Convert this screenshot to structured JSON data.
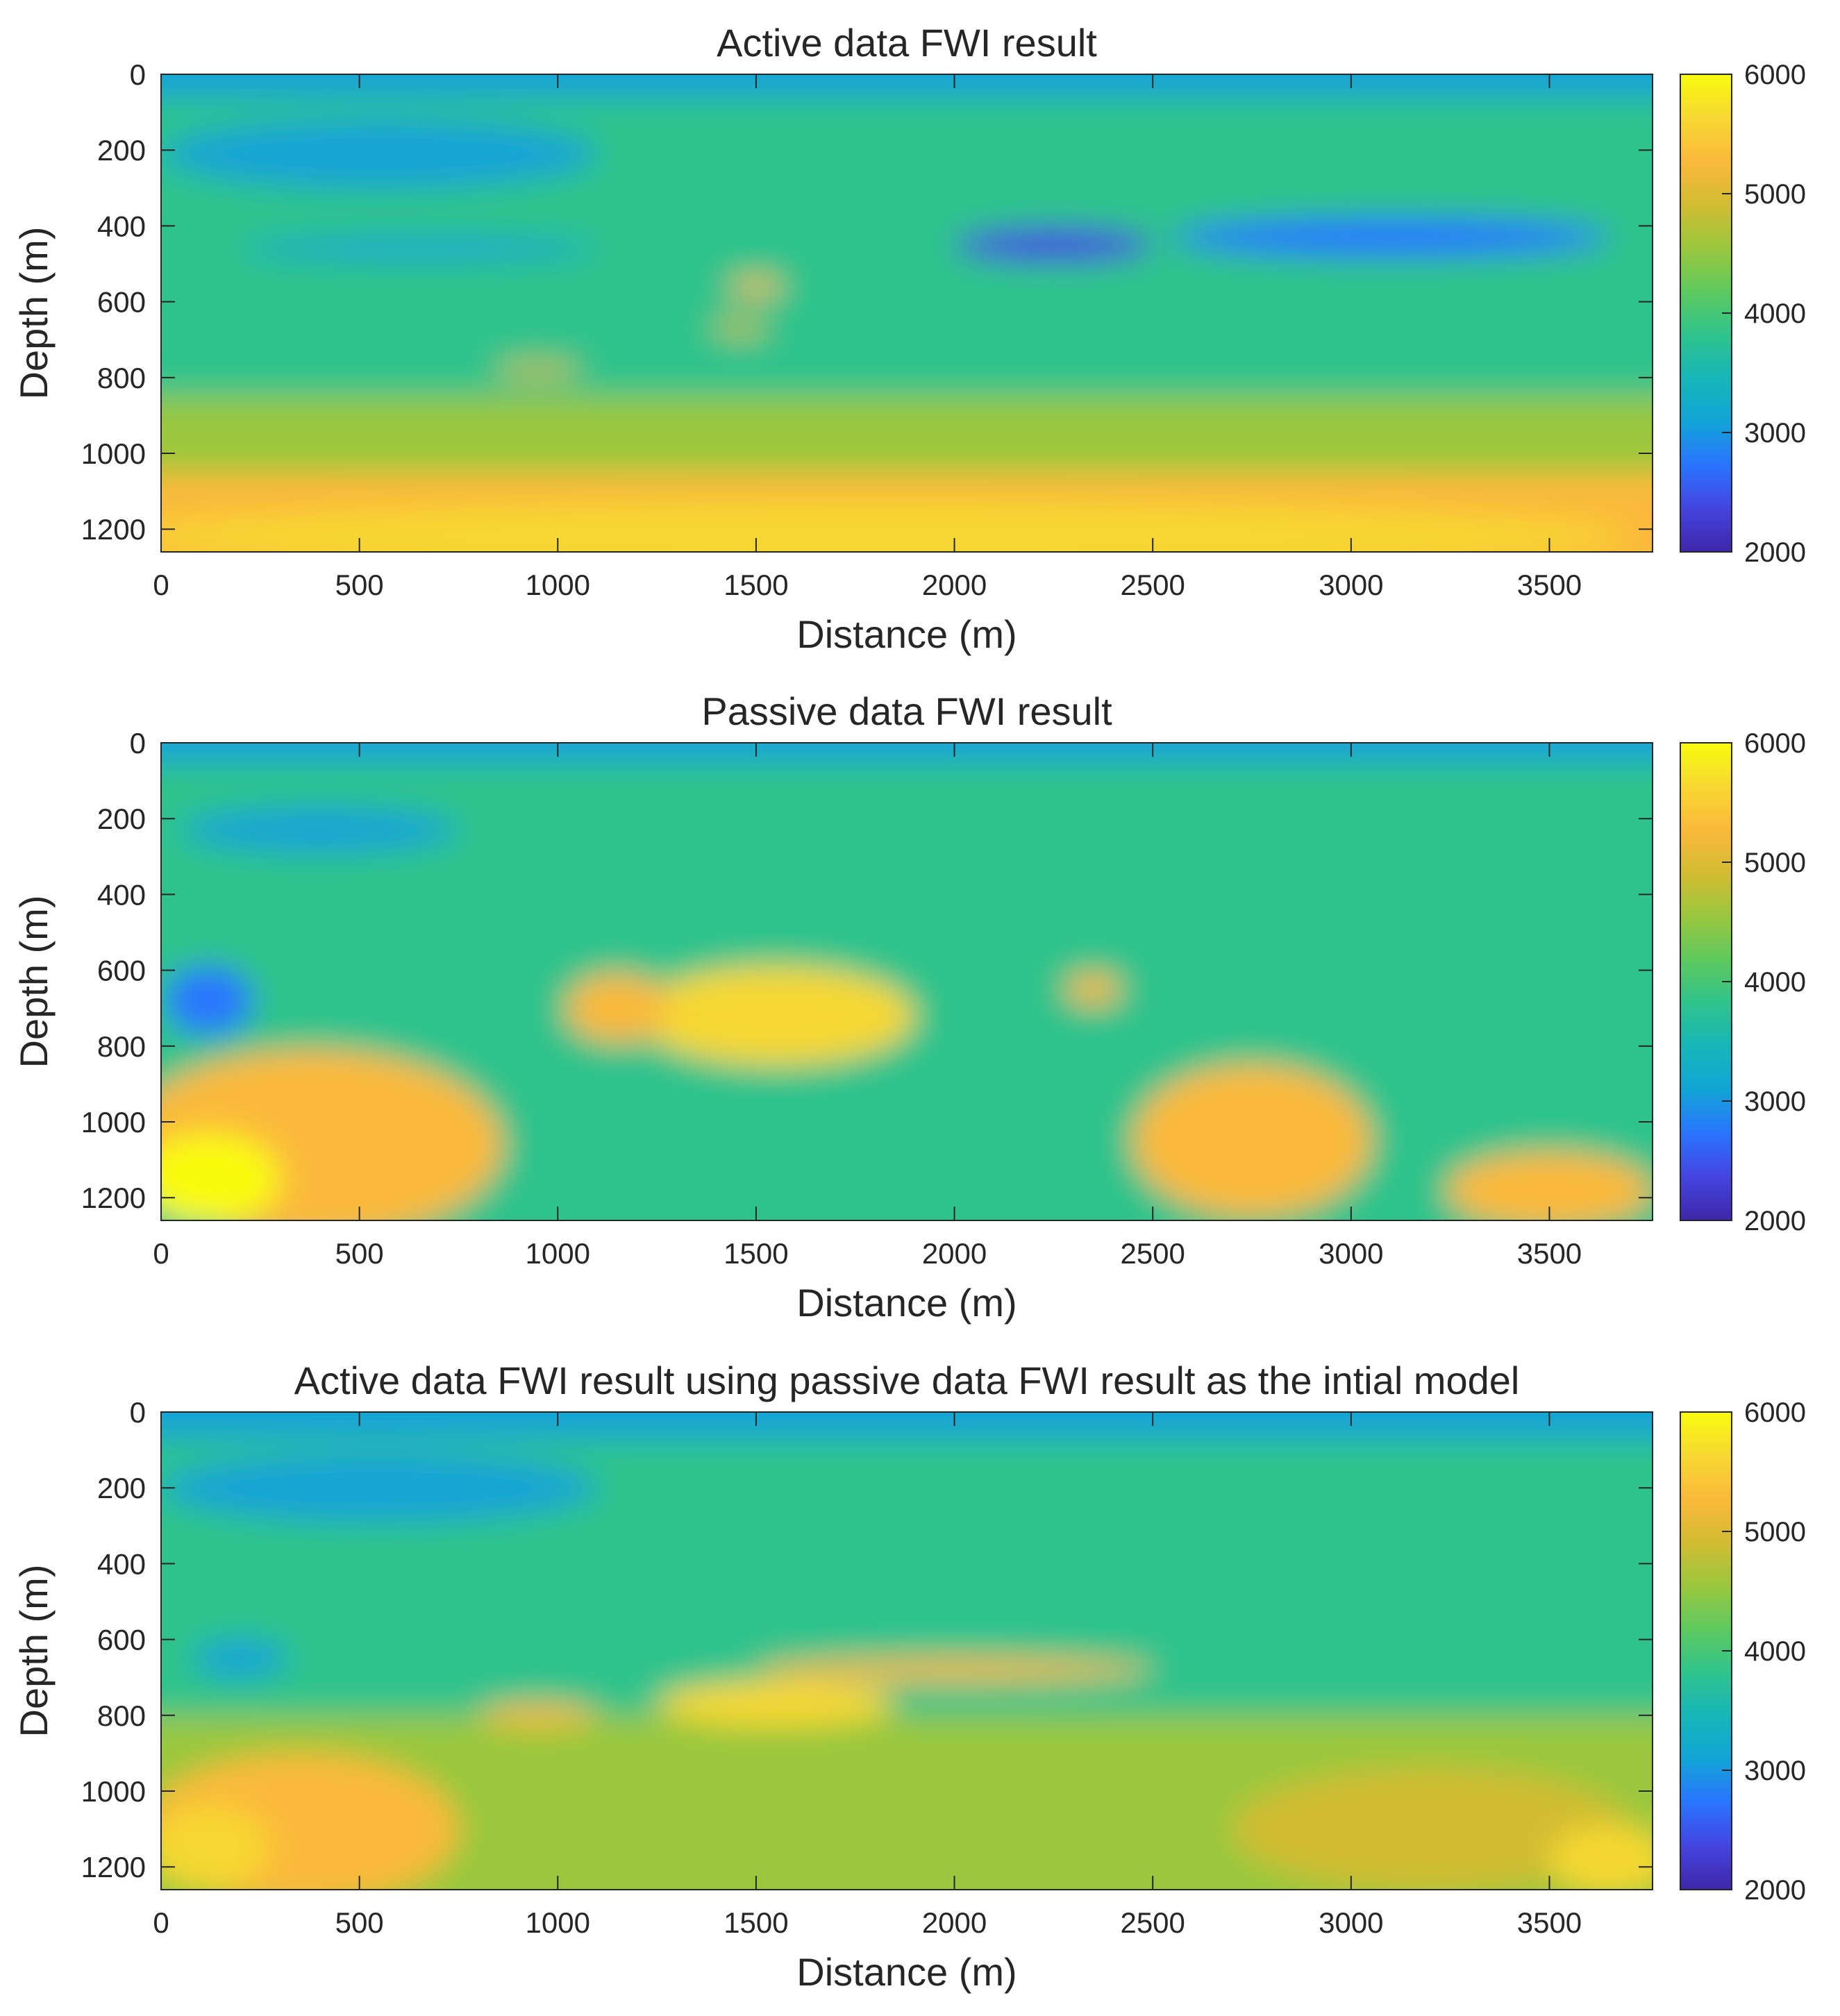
{
  "colorbar_ticks": [
    2000,
    3000,
    4000,
    5000,
    6000
  ],
  "colormap": [
    "#3e26a8",
    "#4444e0",
    "#2a74ff",
    "#12a4d6",
    "#17b6b8",
    "#2fc38c",
    "#5ec95f",
    "#9ac73e",
    "#d2bc32",
    "#fbb93a",
    "#f7d832",
    "#f9fb0e"
  ],
  "chart_data": [
    {
      "type": "heatmap",
      "title": "Active data FWI result",
      "xlabel": "Distance (m)",
      "ylabel": "Depth (m)",
      "xlim": [
        0,
        3760
      ],
      "ylim": [
        0,
        1260
      ],
      "y_reversed": true,
      "xticks": [
        0,
        500,
        1000,
        1500,
        2000,
        2500,
        3000,
        3500
      ],
      "yticks": [
        0,
        200,
        400,
        600,
        800,
        1000,
        1200
      ],
      "clim": [
        2000,
        6000
      ],
      "colorbar_ticks": [
        2000,
        3000,
        4000,
        5000,
        6000
      ],
      "layers": [
        {
          "depth": [
            0,
            60
          ],
          "velocity": 3000
        },
        {
          "depth": [
            60,
            290
          ],
          "velocity": 3900
        },
        {
          "depth": [
            290,
            850
          ],
          "velocity": 3850
        },
        {
          "depth": [
            850,
            1050
          ],
          "velocity": 4500
        },
        {
          "depth": [
            1050,
            1260
          ],
          "velocity": 5400
        }
      ],
      "anomalies": [
        {
          "x": 550,
          "z": 210,
          "rx": 550,
          "rz": 90,
          "velocity": 3100
        },
        {
          "x": 650,
          "z": 460,
          "rx": 450,
          "rz": 28,
          "velocity": 3200
        },
        {
          "x": 950,
          "z": 780,
          "rx": 110,
          "rz": 20,
          "velocity": 4900
        },
        {
          "x": 1500,
          "z": 560,
          "rx": 70,
          "rz": 22,
          "velocity": 5100
        },
        {
          "x": 1460,
          "z": 670,
          "rx": 70,
          "rz": 20,
          "velocity": 5000
        },
        {
          "x": 2250,
          "z": 450,
          "rx": 250,
          "rz": 45,
          "velocity": 2300
        },
        {
          "x": 3100,
          "z": 430,
          "rx": 550,
          "rz": 50,
          "velocity": 2700
        },
        {
          "x": 1800,
          "z": 1220,
          "rx": 1900,
          "rz": 90,
          "velocity": 5750
        }
      ]
    },
    {
      "type": "heatmap",
      "title": "Passive data FWI result",
      "xlabel": "Distance (m)",
      "ylabel": "Depth (m)",
      "xlim": [
        0,
        3760
      ],
      "ylim": [
        0,
        1260
      ],
      "y_reversed": true,
      "xticks": [
        0,
        500,
        1000,
        1500,
        2000,
        2500,
        3000,
        3500
      ],
      "yticks": [
        0,
        200,
        400,
        600,
        800,
        1000,
        1200
      ],
      "clim": [
        2000,
        6000
      ],
      "colorbar_ticks": [
        2000,
        3000,
        4000,
        5000,
        6000
      ],
      "layers": [
        {
          "depth": [
            0,
            50
          ],
          "velocity": 3000
        },
        {
          "depth": [
            50,
            1260
          ],
          "velocity": 3900
        }
      ],
      "anomalies": [
        {
          "x": 400,
          "z": 230,
          "rx": 350,
          "rz": 60,
          "velocity": 3200
        },
        {
          "x": 120,
          "z": 680,
          "rx": 110,
          "rz": 90,
          "velocity": 2600
        },
        {
          "x": 380,
          "z": 1060,
          "rx": 480,
          "rz": 250,
          "velocity": 5400
        },
        {
          "x": 120,
          "z": 1150,
          "rx": 180,
          "rz": 120,
          "velocity": 5900
        },
        {
          "x": 1550,
          "z": 720,
          "rx": 350,
          "rz": 130,
          "velocity": 5500
        },
        {
          "x": 1150,
          "z": 700,
          "rx": 130,
          "rz": 90,
          "velocity": 5300
        },
        {
          "x": 2350,
          "z": 650,
          "rx": 70,
          "rz": 40,
          "velocity": 5400
        },
        {
          "x": 2750,
          "z": 1050,
          "rx": 300,
          "rz": 200,
          "velocity": 5200
        },
        {
          "x": 3500,
          "z": 1180,
          "rx": 260,
          "rz": 100,
          "velocity": 5300
        }
      ]
    },
    {
      "type": "heatmap",
      "title": "Active data FWI result using passive data FWI result as the intial model",
      "xlabel": "Distance (m)",
      "ylabel": "Depth (m)",
      "xlim": [
        0,
        3760
      ],
      "ylim": [
        0,
        1260
      ],
      "y_reversed": true,
      "xticks": [
        0,
        500,
        1000,
        1500,
        2000,
        2500,
        3000,
        3500
      ],
      "yticks": [
        0,
        200,
        400,
        600,
        800,
        1000,
        1200
      ],
      "clim": [
        2000,
        6000
      ],
      "colorbar_ticks": [
        2000,
        3000,
        4000,
        5000,
        6000
      ],
      "layers": [
        {
          "depth": [
            0,
            70
          ],
          "velocity": 3000
        },
        {
          "depth": [
            70,
            280
          ],
          "velocity": 3900
        },
        {
          "depth": [
            280,
            800
          ],
          "velocity": 3850
        },
        {
          "depth": [
            800,
            1260
          ],
          "velocity": 4400
        }
      ],
      "anomalies": [
        {
          "x": 550,
          "z": 200,
          "rx": 550,
          "rz": 90,
          "velocity": 3100
        },
        {
          "x": 200,
          "z": 650,
          "rx": 120,
          "rz": 50,
          "velocity": 3100
        },
        {
          "x": 950,
          "z": 800,
          "rx": 150,
          "rz": 30,
          "velocity": 5300
        },
        {
          "x": 1550,
          "z": 770,
          "rx": 300,
          "rz": 60,
          "velocity": 5500
        },
        {
          "x": 2000,
          "z": 680,
          "rx": 500,
          "rz": 30,
          "velocity": 5300
        },
        {
          "x": 350,
          "z": 1100,
          "rx": 400,
          "rz": 200,
          "velocity": 5300
        },
        {
          "x": 120,
          "z": 1150,
          "rx": 150,
          "rz": 110,
          "velocity": 5800
        },
        {
          "x": 3200,
          "z": 1100,
          "rx": 500,
          "rz": 160,
          "velocity": 5000
        },
        {
          "x": 3650,
          "z": 1180,
          "rx": 150,
          "rz": 90,
          "velocity": 5600
        }
      ]
    }
  ]
}
